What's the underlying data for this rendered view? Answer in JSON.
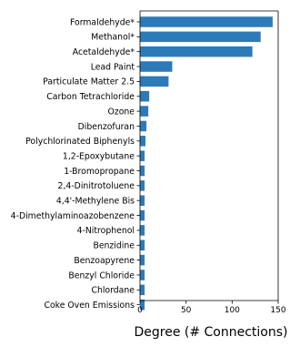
{
  "chart_data": {
    "type": "bar",
    "orientation": "horizontal",
    "categories": [
      "Formaldehyde*",
      "Methanol*",
      "Acetaldehyde*",
      "Lead Paint",
      "Particulate Matter 2.5",
      "Carbon Tetrachloride",
      "Ozone",
      "Dibenzofuran",
      "Polychlorinated Biphenyls",
      "1,2-Epoxybutane",
      "1-Bromopropane",
      "2,4-Dinitrotoluene",
      "4,4'-Methylene Bis",
      "4-Dimethylaminoazobenzene",
      "4-Nitrophenol",
      "Benzidine",
      "Benzoapyrene",
      "Benzyl Chloride",
      "Chlordane",
      "Coke Oven Emissions"
    ],
    "values": [
      144,
      131,
      122,
      35,
      31,
      10,
      9,
      7,
      6,
      5,
      5,
      5,
      5,
      5,
      5,
      5,
      5,
      5,
      5,
      5
    ],
    "xlabel": "Degree (# Connections)",
    "ylabel": "",
    "title": "",
    "xlim": [
      0,
      150
    ],
    "xticks": [
      0,
      50,
      100,
      150
    ],
    "grid": false,
    "bar_color": "#2e7ab8"
  }
}
